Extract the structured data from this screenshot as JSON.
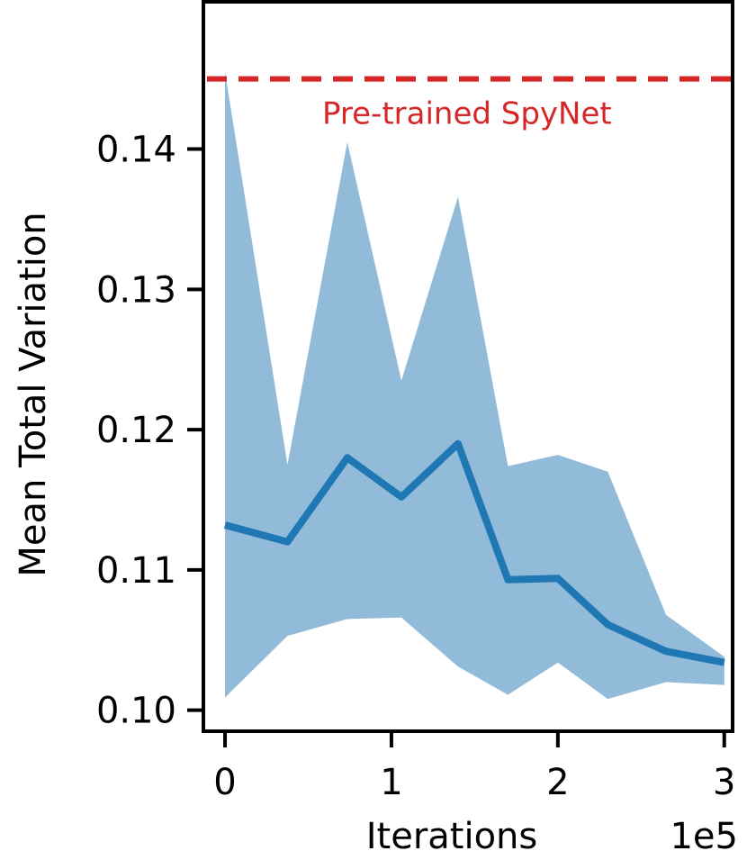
{
  "chart_data": {
    "type": "line",
    "xlabel": "Iterations",
    "x_multiplier": "1e5",
    "ylabel": "Mean Total Variation",
    "xlim": [
      -0.13,
      3.05
    ],
    "ylim": [
      0.0985,
      0.1505
    ],
    "xticks": [
      0,
      1,
      2,
      3
    ],
    "xtick_labels": [
      "0",
      "1",
      "2",
      "3"
    ],
    "yticks": [
      0.1,
      0.11,
      0.12,
      0.13,
      0.14
    ],
    "ytick_labels": [
      "0.10",
      "0.11",
      "0.12",
      "0.13",
      "0.14"
    ],
    "grid": false,
    "x": [
      0,
      0.375,
      0.735,
      1.06,
      1.4,
      1.7,
      2.0,
      2.3,
      2.65,
      3.0
    ],
    "series": [
      {
        "values": [
          0.1132,
          0.112,
          0.118,
          0.1152,
          0.119,
          0.1093,
          0.1094,
          0.1061,
          0.1042,
          0.1034
        ],
        "color": "#1f77b4"
      }
    ],
    "band": {
      "upper": [
        0.1455,
        0.1175,
        0.1405,
        0.1235,
        0.1366,
        0.1174,
        0.1182,
        0.117,
        0.1068,
        0.1038
      ],
      "lower": [
        0.1009,
        0.1053,
        0.1065,
        0.1066,
        0.1031,
        0.1011,
        0.1034,
        0.1008,
        0.102,
        0.1018
      ],
      "color": "#91bbd9"
    },
    "reference_line": {
      "label": "Pre-trained SpyNet",
      "y": 0.145,
      "color": "#d62728",
      "style": "dashed"
    }
  }
}
